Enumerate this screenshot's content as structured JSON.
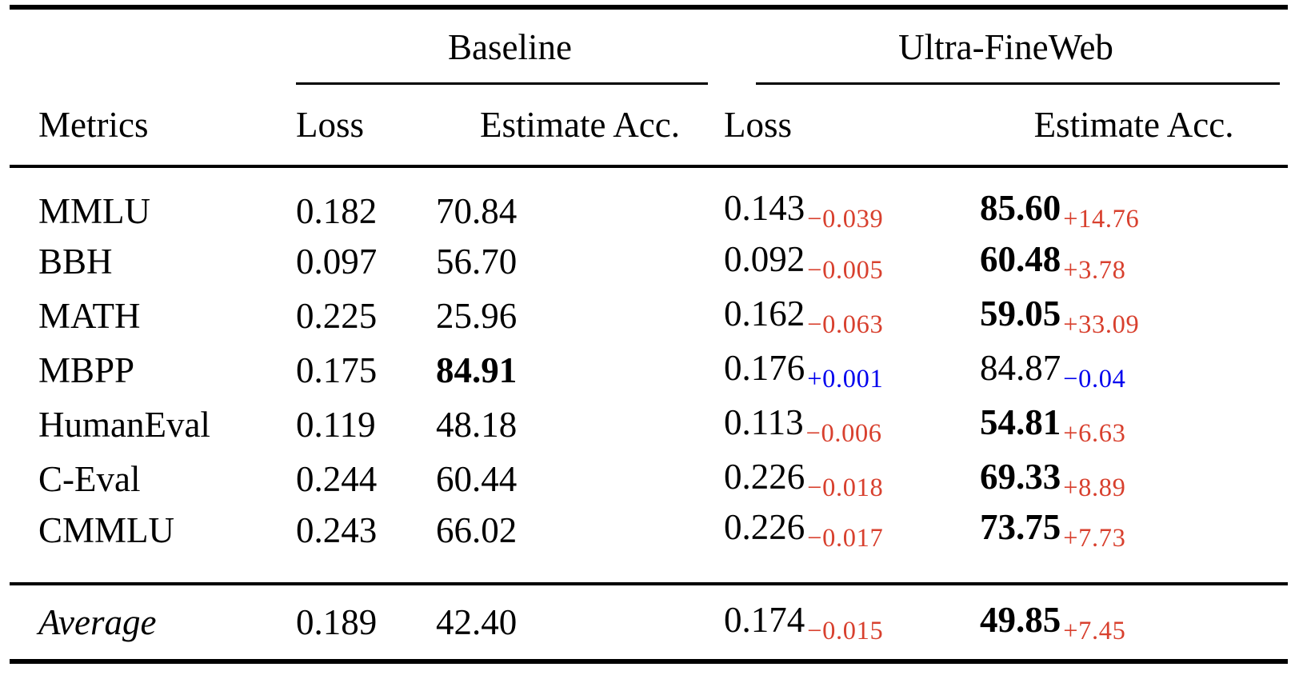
{
  "colors": {
    "improvement_delta": "#d8402e",
    "regression_delta": "#0000ee",
    "rule": "#000000",
    "background": "#ffffff"
  },
  "header": {
    "metrics_label": "Metrics",
    "groups": [
      {
        "label": "Baseline",
        "loss_label": "Loss",
        "acc_label": "Estimate Acc."
      },
      {
        "label": "Ultra-FineWeb",
        "loss_label": "Loss",
        "acc_label": "Estimate Acc."
      }
    ]
  },
  "rows": [
    {
      "metric": "MMLU",
      "baseline_loss": "0.182",
      "baseline_acc": "70.84",
      "baseline_acc_weight": "normal",
      "ultra_loss": "0.143",
      "ultra_loss_delta": "−0.039",
      "ultra_loss_tone": "good",
      "ultra_acc": "85.60",
      "ultra_acc_weight": "bold",
      "ultra_acc_delta": "+14.76",
      "ultra_acc_tone": "good"
    },
    {
      "metric": "BBH",
      "baseline_loss": "0.097",
      "baseline_acc": "56.70",
      "baseline_acc_weight": "normal",
      "ultra_loss": "0.092",
      "ultra_loss_delta": "−0.005",
      "ultra_loss_tone": "good",
      "ultra_acc": "60.48",
      "ultra_acc_weight": "bold",
      "ultra_acc_delta": "+3.78",
      "ultra_acc_tone": "good"
    },
    {
      "metric": "MATH",
      "baseline_loss": "0.225",
      "baseline_acc": "25.96",
      "baseline_acc_weight": "normal",
      "ultra_loss": "0.162",
      "ultra_loss_delta": "−0.063",
      "ultra_loss_tone": "good",
      "ultra_acc": "59.05",
      "ultra_acc_weight": "bold",
      "ultra_acc_delta": "+33.09",
      "ultra_acc_tone": "good"
    },
    {
      "metric": "MBPP",
      "baseline_loss": "0.175",
      "baseline_acc": "84.91",
      "baseline_acc_weight": "bold",
      "ultra_loss": "0.176",
      "ultra_loss_delta": "+0.001",
      "ultra_loss_tone": "bad",
      "ultra_acc": "84.87",
      "ultra_acc_weight": "normal",
      "ultra_acc_delta": "−0.04",
      "ultra_acc_tone": "bad"
    },
    {
      "metric": "HumanEval",
      "baseline_loss": "0.119",
      "baseline_acc": "48.18",
      "baseline_acc_weight": "normal",
      "ultra_loss": "0.113",
      "ultra_loss_delta": "−0.006",
      "ultra_loss_tone": "good",
      "ultra_acc": "54.81",
      "ultra_acc_weight": "bold",
      "ultra_acc_delta": "+6.63",
      "ultra_acc_tone": "good"
    },
    {
      "metric": "C-Eval",
      "baseline_loss": "0.244",
      "baseline_acc": "60.44",
      "baseline_acc_weight": "normal",
      "ultra_loss": "0.226",
      "ultra_loss_delta": "−0.018",
      "ultra_loss_tone": "good",
      "ultra_acc": "69.33",
      "ultra_acc_weight": "bold",
      "ultra_acc_delta": "+8.89",
      "ultra_acc_tone": "good"
    },
    {
      "metric": "CMMLU",
      "baseline_loss": "0.243",
      "baseline_acc": "66.02",
      "baseline_acc_weight": "normal",
      "ultra_loss": "0.226",
      "ultra_loss_delta": "−0.017",
      "ultra_loss_tone": "good",
      "ultra_acc": "73.75",
      "ultra_acc_weight": "bold",
      "ultra_acc_delta": "+7.73",
      "ultra_acc_tone": "good"
    }
  ],
  "footer": {
    "metric": "Average",
    "baseline_loss": "0.189",
    "baseline_acc": "42.40",
    "baseline_acc_weight": "normal",
    "ultra_loss": "0.174",
    "ultra_loss_delta": "−0.015",
    "ultra_loss_tone": "good",
    "ultra_acc": "49.85",
    "ultra_acc_weight": "bold",
    "ultra_acc_delta": "+7.45",
    "ultra_acc_tone": "good"
  }
}
